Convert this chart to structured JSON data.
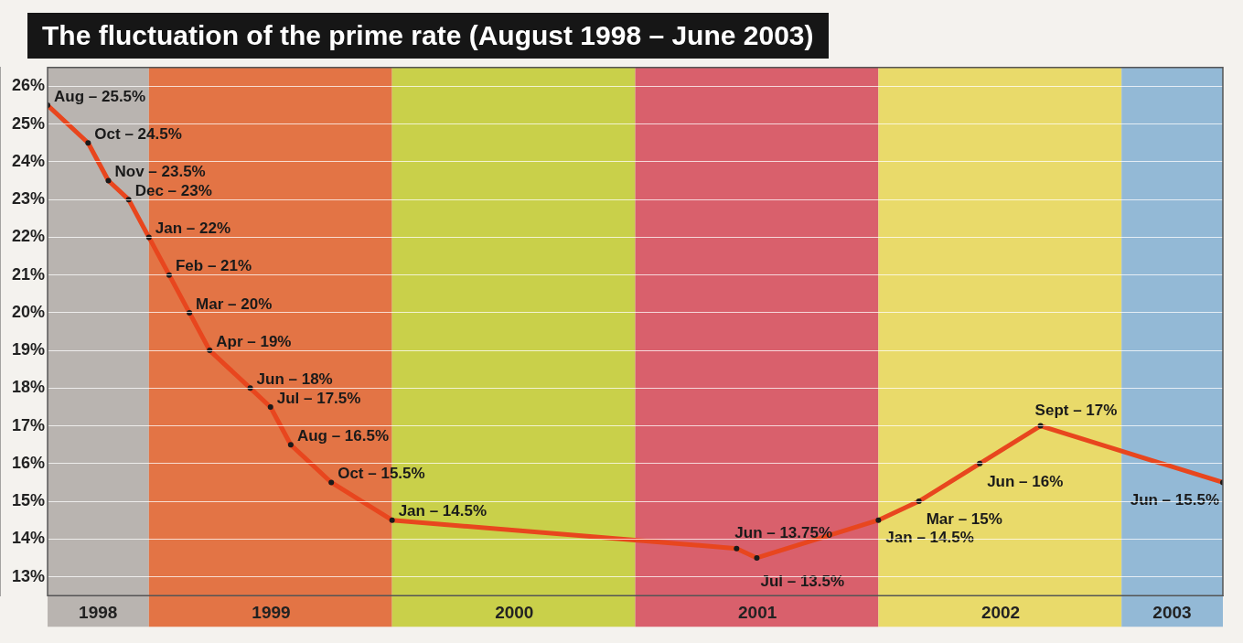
{
  "chart_data": {
    "type": "line",
    "title": "The fluctuation of the prime rate (August 1998 – June 2003)",
    "x": [
      "1998-08",
      "1998-10",
      "1998-11",
      "1998-12",
      "1999-01",
      "1999-02",
      "1999-03",
      "1999-04",
      "1999-06",
      "1999-07",
      "1999-08",
      "1999-10",
      "2000-01",
      "2001-06",
      "2001-07",
      "2002-01",
      "2002-03",
      "2002-06",
      "2002-09",
      "2003-06"
    ],
    "series": [
      {
        "color": "#e8461e",
        "values": [
          25.5,
          24.5,
          23.5,
          23,
          22,
          21,
          20,
          19,
          18,
          17.5,
          16.5,
          15.5,
          14.5,
          13.75,
          13.5,
          14.5,
          15,
          16,
          17,
          15.5
        ],
        "value_labels": [
          "Aug – 25.5%",
          "Oct – 24.5%",
          "Nov – 23.5%",
          "Dec – 23%",
          "Jan – 22%",
          "Feb – 21%",
          "Mar – 20%",
          "Apr – 19%",
          "Jun – 18%",
          "Jul – 17.5%",
          "Aug – 16.5%",
          "Oct – 15.5%",
          "Jan – 14.5%",
          "Jun – 13.75%",
          "Jul – 13.5%",
          "Jan – 14.5%",
          "Mar – 15%",
          "Jun – 16%",
          "Sept – 17%",
          "Jun – 15.5%"
        ]
      }
    ],
    "xlim": [
      "1998-08",
      "2003-06"
    ],
    "ylim": [
      12.5,
      26.5
    ],
    "yticks": [
      {
        "value": 13,
        "label": "13%"
      },
      {
        "value": 14,
        "label": "14%"
      },
      {
        "value": 15,
        "label": "15%"
      },
      {
        "value": 16,
        "label": "16%"
      },
      {
        "value": 17,
        "label": "17%"
      },
      {
        "value": 18,
        "label": "18%"
      },
      {
        "value": 19,
        "label": "19%"
      },
      {
        "value": 20,
        "label": "20%"
      },
      {
        "value": 21,
        "label": "21%"
      },
      {
        "value": 22,
        "label": "22%"
      },
      {
        "value": 23,
        "label": "23%"
      },
      {
        "value": 24,
        "label": "24%"
      },
      {
        "value": 25,
        "label": "25%"
      },
      {
        "value": 26,
        "label": "26%"
      }
    ],
    "xticks": [
      {
        "value": "1998-10-16",
        "label": "1998"
      },
      {
        "value": "1999-07-02",
        "label": "1999"
      },
      {
        "value": "2000-07-02",
        "label": "2000"
      },
      {
        "value": "2001-07-02",
        "label": "2001"
      },
      {
        "value": "2002-07-02",
        "label": "2002"
      },
      {
        "value": "2003-03-16",
        "label": "2003"
      }
    ],
    "bands": [
      {
        "axis": "x",
        "from": "1998-08",
        "to": "1999-01",
        "color": "#b9b4b0"
      },
      {
        "axis": "x",
        "from": "1999-01",
        "to": "2000-01",
        "color": "#e37445"
      },
      {
        "axis": "x",
        "from": "2000-01",
        "to": "2001-01",
        "color": "#c9d04a"
      },
      {
        "axis": "x",
        "from": "2001-01",
        "to": "2002-01",
        "color": "#d9606c"
      },
      {
        "axis": "x",
        "from": "2002-01",
        "to": "2003-01",
        "color": "#e9da6a"
      },
      {
        "axis": "x",
        "from": "2003-01",
        "to": "2003-06",
        "color": "#93b9d6"
      }
    ],
    "grid": "y",
    "marker": "circle",
    "line_style": "solid"
  }
}
